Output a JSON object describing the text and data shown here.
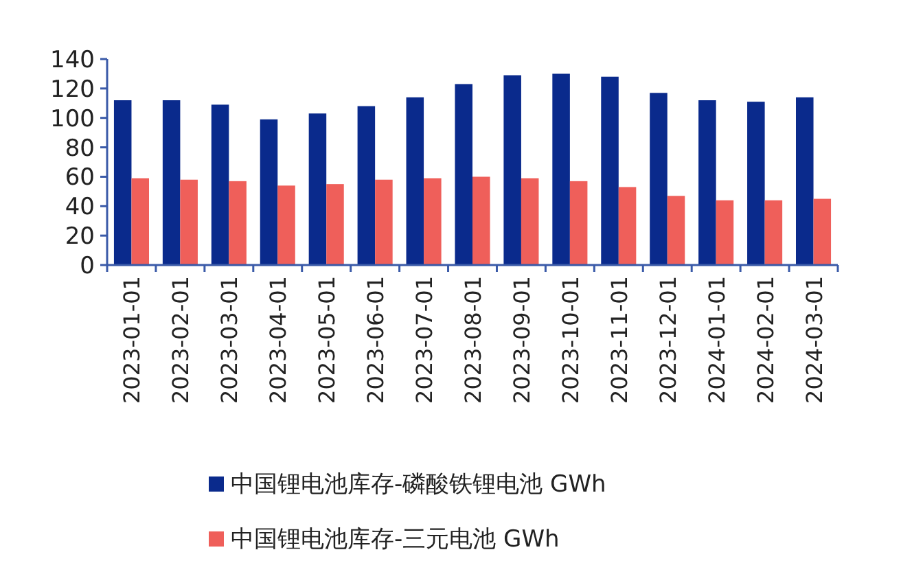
{
  "chart_data": {
    "type": "bar",
    "categories": [
      "2023-01-01",
      "2023-02-01",
      "2023-03-01",
      "2023-04-01",
      "2023-05-01",
      "2023-06-01",
      "2023-07-01",
      "2023-08-01",
      "2023-09-01",
      "2023-10-01",
      "2023-11-01",
      "2023-12-01",
      "2024-01-01",
      "2024-02-01",
      "2024-03-01"
    ],
    "series": [
      {
        "name": "中国锂电池库存-磷酸铁锂电池 GWh",
        "color": "#0a2a8c",
        "values": [
          112,
          112,
          109,
          99,
          103,
          108,
          114,
          123,
          129,
          130,
          128,
          117,
          112,
          111,
          114
        ]
      },
      {
        "name": "中国锂电池库存-三元电池 GWh",
        "color": "#ef5f5a",
        "values": [
          59,
          58,
          57,
          54,
          55,
          58,
          59,
          60,
          59,
          57,
          53,
          47,
          44,
          44,
          45
        ]
      }
    ],
    "ylim": [
      0,
      140
    ],
    "yticks": [
      0,
      20,
      40,
      60,
      80,
      100,
      120,
      140
    ],
    "grid": false,
    "legend": "bottom"
  }
}
